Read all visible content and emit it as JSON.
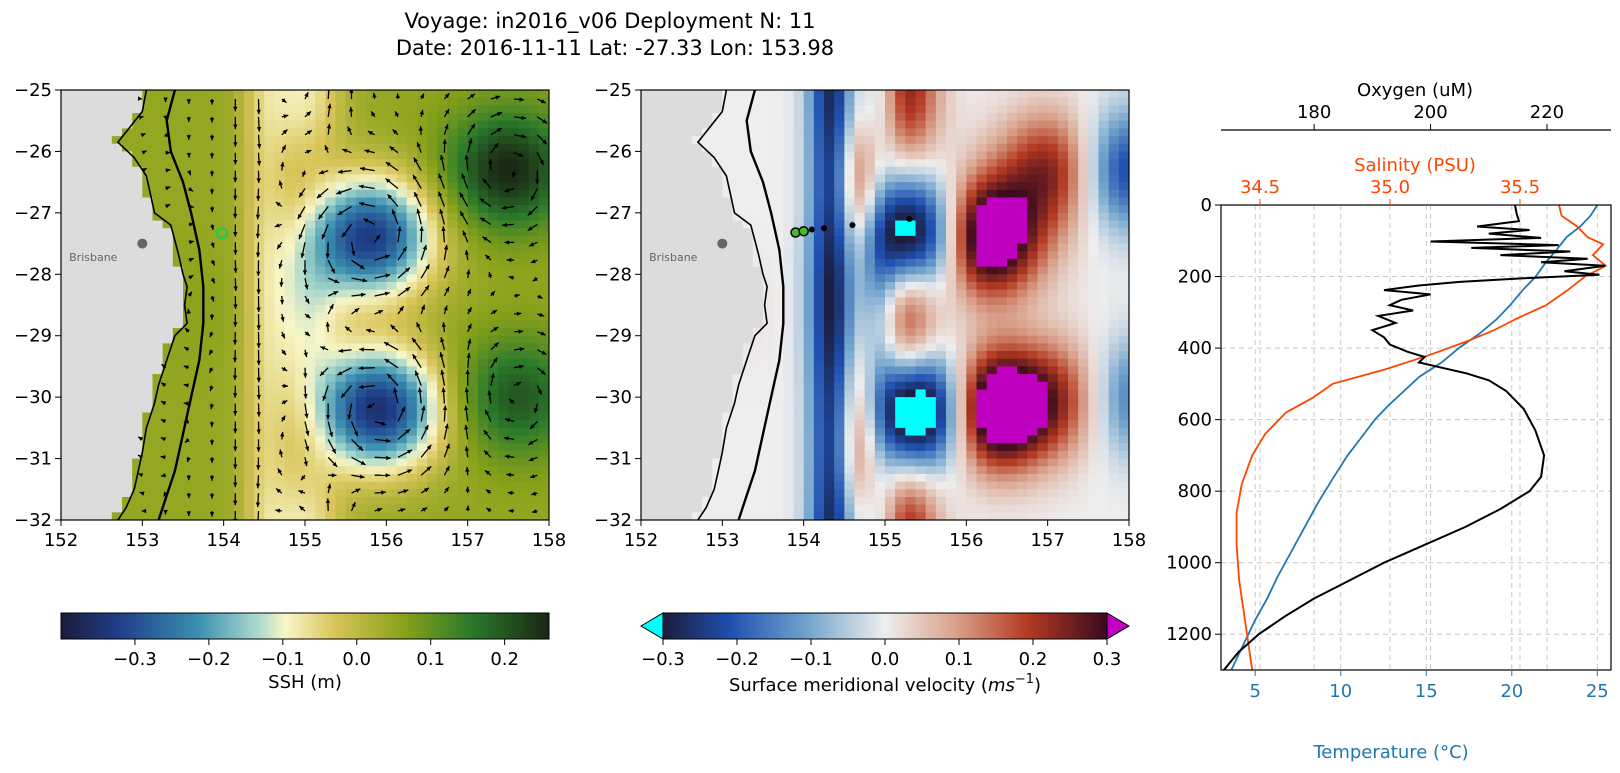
{
  "figure": {
    "title_line1": "Voyage: in2016_v06 Deployment N: 11",
    "title_line2": "Date: 2016-11-11 Lat: -27.33 Lon: 153.98"
  },
  "chart_data": [
    {
      "type": "heatmap",
      "panel": "ssh_map",
      "xlim": [
        152,
        158
      ],
      "ylim": [
        -32,
        -25
      ],
      "xticks": [
        "152",
        "153",
        "154",
        "155",
        "156",
        "157",
        "158"
      ],
      "yticks": [
        "−25",
        "−26",
        "−27",
        "−28",
        "−29",
        "−30",
        "−31",
        "−32"
      ],
      "place_label": "Brisbane",
      "place_location": {
        "lon": 153.0,
        "lat": -27.5
      },
      "deployment_marker": {
        "lon": 153.98,
        "lat": -27.33
      },
      "eddies": [
        {
          "lon": 155.8,
          "lat": -27.4,
          "ssh": -0.33
        },
        {
          "lon": 155.9,
          "lat": -30.2,
          "ssh": -0.35
        },
        {
          "lon": 157.5,
          "lat": -26.3,
          "ssh": 0.26
        },
        {
          "lon": 157.6,
          "lat": -30.0,
          "ssh": 0.2
        },
        {
          "lon": 153.8,
          "lat": -28.6,
          "ssh": 0.06
        }
      ],
      "colorbar": {
        "label": "SSH (m)",
        "range": [
          -0.4,
          0.26
        ],
        "ticks": [
          "−0.3",
          "−0.2",
          "−0.1",
          "0.0",
          "0.1",
          "0.2"
        ],
        "tick_values": [
          -0.3,
          -0.2,
          -0.1,
          0.0,
          0.1,
          0.2
        ]
      }
    },
    {
      "type": "heatmap",
      "panel": "meridional_velocity_map",
      "xlim": [
        152,
        158
      ],
      "ylim": [
        -32,
        -25
      ],
      "xticks": [
        "152",
        "153",
        "154",
        "155",
        "156",
        "157",
        "158"
      ],
      "yticks": [
        "−25",
        "−26",
        "−27",
        "−28",
        "−29",
        "−30",
        "−31",
        "−32"
      ],
      "place_label": "Brisbane",
      "place_location": {
        "lon": 153.0,
        "lat": -27.5
      },
      "float_track": [
        {
          "lon": 153.9,
          "lat": -27.32
        },
        {
          "lon": 154.0,
          "lat": -27.3
        },
        {
          "lon": 154.1,
          "lat": -27.27
        },
        {
          "lon": 154.25,
          "lat": -27.25
        },
        {
          "lon": 154.6,
          "lat": -27.2
        },
        {
          "lon": 155.3,
          "lat": -27.1
        }
      ],
      "colorbar": {
        "label": "Surface meridional velocity ",
        "label_unit_base": "ms",
        "label_unit_exp": "−1",
        "range": [
          -0.3,
          0.3
        ],
        "extend": "both",
        "ticks": [
          "−0.3",
          "−0.2",
          "−0.1",
          "0.0",
          "0.1",
          "0.2",
          "0.3"
        ],
        "tick_values": [
          -0.3,
          -0.2,
          -0.1,
          0.0,
          0.1,
          0.2,
          0.3
        ]
      }
    },
    {
      "type": "line",
      "panel": "profiles",
      "ylabel_inverted": true,
      "ylim": [
        1300,
        0
      ],
      "yticks": [
        "0",
        "200",
        "400",
        "600",
        "800",
        "1000",
        "1200"
      ],
      "temperature_axis": {
        "label": "Temperature (°C)",
        "xlim": [
          3,
          25.8
        ],
        "ticks": [
          "5",
          "10",
          "15",
          "20",
          "25"
        ],
        "color": "#1f77b4"
      },
      "salinity_axis": {
        "label": "Salinity (PSU)",
        "xlim": [
          34.35,
          35.85
        ],
        "ticks": [
          "34.5",
          "35.0",
          "35.5"
        ],
        "color": "#ff4500"
      },
      "oxygen_axis": {
        "label": "Oxygen (uM)",
        "xlim": [
          164,
          231
        ],
        "ticks": [
          "180",
          "200",
          "220"
        ],
        "color": "#000000"
      },
      "series": [
        {
          "name": "Temperature",
          "axis": "temperature",
          "color": "#1f77b4",
          "points": [
            [
              25.0,
              0
            ],
            [
              24.6,
              30
            ],
            [
              24.0,
              60
            ],
            [
              23.2,
              90
            ],
            [
              22.7,
              120
            ],
            [
              22.0,
              160
            ],
            [
              21.4,
              200
            ],
            [
              20.6,
              240
            ],
            [
              19.9,
              280
            ],
            [
              19.1,
              320
            ],
            [
              18.1,
              360
            ],
            [
              16.9,
              400
            ],
            [
              15.9,
              440
            ],
            [
              14.6,
              480
            ],
            [
              13.7,
              520
            ],
            [
              12.8,
              560
            ],
            [
              12.0,
              600
            ],
            [
              11.2,
              650
            ],
            [
              10.4,
              700
            ],
            [
              9.6,
              760
            ],
            [
              8.7,
              830
            ],
            [
              7.9,
              900
            ],
            [
              7.1,
              970
            ],
            [
              6.3,
              1040
            ],
            [
              5.7,
              1100
            ],
            [
              5.0,
              1160
            ],
            [
              4.4,
              1220
            ],
            [
              3.9,
              1270
            ],
            [
              3.6,
              1300
            ]
          ]
        },
        {
          "name": "Salinity",
          "axis": "salinity",
          "color": "#ff4500",
          "points": [
            [
              35.65,
              0
            ],
            [
              35.66,
              30
            ],
            [
              35.72,
              60
            ],
            [
              35.76,
              90
            ],
            [
              35.82,
              110
            ],
            [
              35.78,
              140
            ],
            [
              35.83,
              170
            ],
            [
              35.75,
              200
            ],
            [
              35.68,
              240
            ],
            [
              35.6,
              280
            ],
            [
              35.48,
              320
            ],
            [
              35.4,
              350
            ],
            [
              35.3,
              380
            ],
            [
              35.15,
              420
            ],
            [
              34.98,
              460
            ],
            [
              34.78,
              500
            ],
            [
              34.7,
              540
            ],
            [
              34.6,
              580
            ],
            [
              34.52,
              640
            ],
            [
              34.47,
              700
            ],
            [
              34.43,
              780
            ],
            [
              34.41,
              860
            ],
            [
              34.41,
              950
            ],
            [
              34.42,
              1050
            ],
            [
              34.44,
              1150
            ],
            [
              34.46,
              1250
            ],
            [
              34.47,
              1300
            ]
          ]
        },
        {
          "name": "Oxygen",
          "axis": "oxygen",
          "color": "#000000",
          "points": [
            [
              214.5,
              0
            ],
            [
              214.8,
              25
            ],
            [
              215.2,
              45
            ],
            [
              208.0,
              60
            ],
            [
              217.0,
              70
            ],
            [
              210.0,
              80
            ],
            [
              219.0,
              92
            ],
            [
              200.0,
              102
            ],
            [
              222.0,
              112
            ],
            [
              207.0,
              120
            ],
            [
              224.0,
              130
            ],
            [
              212.0,
              140
            ],
            [
              227.0,
              150
            ],
            [
              219.0,
              160
            ],
            [
              230.0,
              170
            ],
            [
              223.0,
              185
            ],
            [
              229.0,
              195
            ],
            [
              216.0,
              205
            ],
            [
              205.0,
              215
            ],
            [
              198.0,
              225
            ],
            [
              192.0,
              238
            ],
            [
              200.0,
              250
            ],
            [
              195.0,
              265
            ],
            [
              193.0,
              280
            ],
            [
              197.0,
              295
            ],
            [
              191.0,
              310
            ],
            [
              194.0,
              330
            ],
            [
              190.0,
              350
            ],
            [
              192.0,
              370
            ],
            [
              193.0,
              390
            ],
            [
              196.0,
              410
            ],
            [
              199.0,
              425
            ],
            [
              198.0,
              440
            ],
            [
              202.0,
              455
            ],
            [
              206.0,
              470
            ],
            [
              210.0,
              490
            ],
            [
              213.0,
              520
            ],
            [
              216.0,
              570
            ],
            [
              218.0,
              630
            ],
            [
              219.5,
              700
            ],
            [
              219.0,
              760
            ],
            [
              217.0,
              800
            ],
            [
              212.0,
              850
            ],
            [
              206.0,
              900
            ],
            [
              199.0,
              950
            ],
            [
              192.0,
              1000
            ],
            [
              186.0,
              1050
            ],
            [
              180.0,
              1100
            ],
            [
              175.0,
              1150
            ],
            [
              170.5,
              1200
            ],
            [
              167.0,
              1250
            ],
            [
              164.5,
              1300
            ]
          ]
        }
      ]
    }
  ]
}
